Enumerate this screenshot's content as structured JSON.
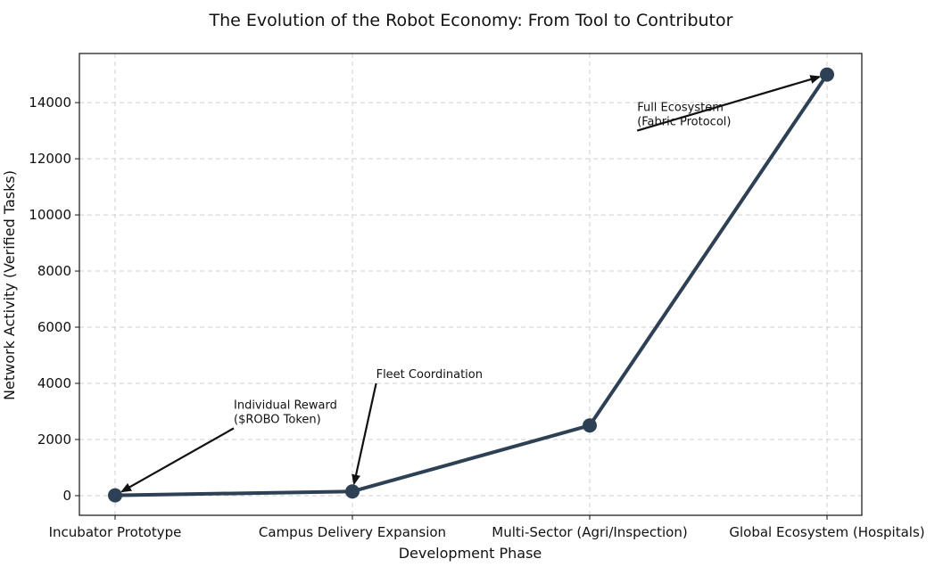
{
  "chart_data": {
    "type": "line",
    "title": "The Evolution of the Robot Economy: From Tool to Contributor",
    "xlabel": "Development Phase",
    "ylabel": "Network Activity (Verified Tasks)",
    "categories": [
      "Incubator Prototype",
      "Campus Delivery Expansion",
      "Multi-Sector (Agri/Inspection)",
      "Global Ecosystem (Hospitals)"
    ],
    "series": [
      {
        "values": [
          10,
          150,
          2500,
          15000
        ],
        "color": "#2e4053"
      }
    ],
    "ylim": [
      -700,
      15750
    ],
    "yticks": [
      0,
      2000,
      4000,
      6000,
      8000,
      10000,
      12000,
      14000
    ],
    "grid": true,
    "annotations": [
      {
        "lines": [
          "Individual Reward",
          "($ROBO Token)"
        ],
        "target_index": 0,
        "target_value": 10,
        "text_index": 0.5,
        "text_value": 2400
      },
      {
        "lines": [
          "Fleet Coordination"
        ],
        "target_index": 1,
        "target_value": 150,
        "text_index": 1.1,
        "text_value": 4000
      },
      {
        "lines": [
          "Full Ecosystem",
          "(Fabric Protocol)"
        ],
        "target_index": 3,
        "target_value": 15000,
        "text_index": 2.2,
        "text_value": 13000
      }
    ]
  }
}
